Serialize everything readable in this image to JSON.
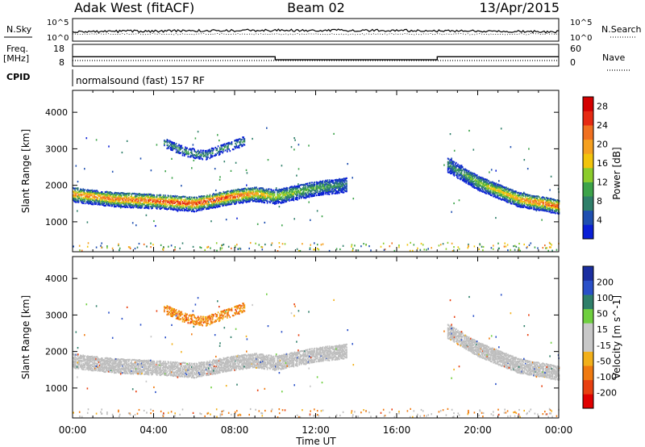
{
  "header": {
    "site": "Adak West (fitACF)",
    "beam": "Beam 02",
    "date": "13/Apr/2015"
  },
  "status_panel": {
    "nsky_label": "N.Sky",
    "nsearch_label": "N.Search",
    "noise_ticks_left": [
      "10^5",
      "10^0"
    ],
    "noise_ticks_right": [
      "10^5",
      "10^0"
    ],
    "freq_label": [
      "Freq.",
      "[MHz]"
    ],
    "freq_ticks": [
      "18",
      "8"
    ],
    "nave_label": "Nave",
    "nave_ticks": [
      "60",
      "0"
    ],
    "cpid_label": "CPID",
    "cpid_text": "normalsound (fast) 157 RF",
    "freq_mhz": [
      {
        "t0": 0.0,
        "t1": 10.0,
        "value": 13.3
      },
      {
        "t0": 10.0,
        "t1": 18.0,
        "value": 11.6
      },
      {
        "t0": 18.0,
        "t1": 24.0,
        "value": 13.3
      }
    ]
  },
  "colors": {
    "power": [
      "#0a1fd6",
      "#1f4fb0",
      "#2f7f6a",
      "#3da34a",
      "#8ccc2c",
      "#f2c40c",
      "#f5a020",
      "#f07020",
      "#e62a12",
      "#d40000"
    ],
    "velocity": [
      "#1a2ea0",
      "#2a50c8",
      "#2f7f6a",
      "#6fcf3f",
      "#c8c8c8",
      "#c8c8c8",
      "#f2b01a",
      "#f07a10",
      "#e84010",
      "#e00000"
    ],
    "ground": "#bebebe"
  },
  "chart_data": [
    {
      "type": "heatmap",
      "name": "power",
      "ylabel": "Slant Range [km]",
      "xlim": [
        0,
        24
      ],
      "ylim": [
        180,
        4600
      ],
      "yticks": [
        1000,
        2000,
        3000,
        4000
      ],
      "colorbar": {
        "label": "Power [dB]",
        "ticks": [
          "4",
          "8",
          "12",
          "16",
          "20",
          "24",
          "28"
        ],
        "range": [
          0,
          30
        ]
      },
      "features": [
        {
          "feature": "main_band",
          "time_hr": [
            0,
            2,
            4,
            6,
            8,
            9,
            10,
            12,
            13.5
          ],
          "center_km": [
            1780,
            1650,
            1600,
            1520,
            1730,
            1800,
            1720,
            1950,
            2050
          ],
          "peak_db": [
            22,
            24,
            26,
            28,
            26,
            22,
            16,
            12,
            8
          ]
        },
        {
          "feature": "upper_arc",
          "time_hr": [
            4.5,
            5.5,
            6.5,
            7.5,
            8.5
          ],
          "center_km": [
            3200,
            2950,
            2850,
            3050,
            3250
          ],
          "peak_db": 10
        },
        {
          "feature": "evening_band",
          "time_hr": [
            18.5,
            20,
            22,
            24
          ],
          "center_km": [
            2600,
            2100,
            1650,
            1450
          ],
          "peak_db": [
            8,
            14,
            22,
            26
          ]
        }
      ]
    },
    {
      "type": "heatmap",
      "name": "velocity",
      "ylabel": "Slant Range [km]",
      "xlabel": "Time UT",
      "xlim": [
        0,
        24
      ],
      "ylim": [
        180,
        4600
      ],
      "yticks": [
        1000,
        2000,
        3000,
        4000
      ],
      "xticks": [
        "00:00",
        "04:00",
        "08:00",
        "12:00",
        "16:00",
        "20:00",
        "00:00"
      ],
      "colorbar": {
        "label": "Velocity [m s^-1]",
        "ticks": [
          "200",
          "100",
          "50",
          "15",
          "-15",
          "-50",
          "-100",
          "-200"
        ],
        "range": [
          -250,
          250
        ]
      },
      "features": [
        {
          "feature": "main_band",
          "velocity_m_s": "mostly ground scatter (grey), near 0"
        },
        {
          "feature": "upper_arc",
          "velocity_m_s": [
            -30,
            -80
          ]
        },
        {
          "feature": "evening_band",
          "velocity_m_s": "mostly ground scatter (grey)"
        }
      ]
    }
  ]
}
